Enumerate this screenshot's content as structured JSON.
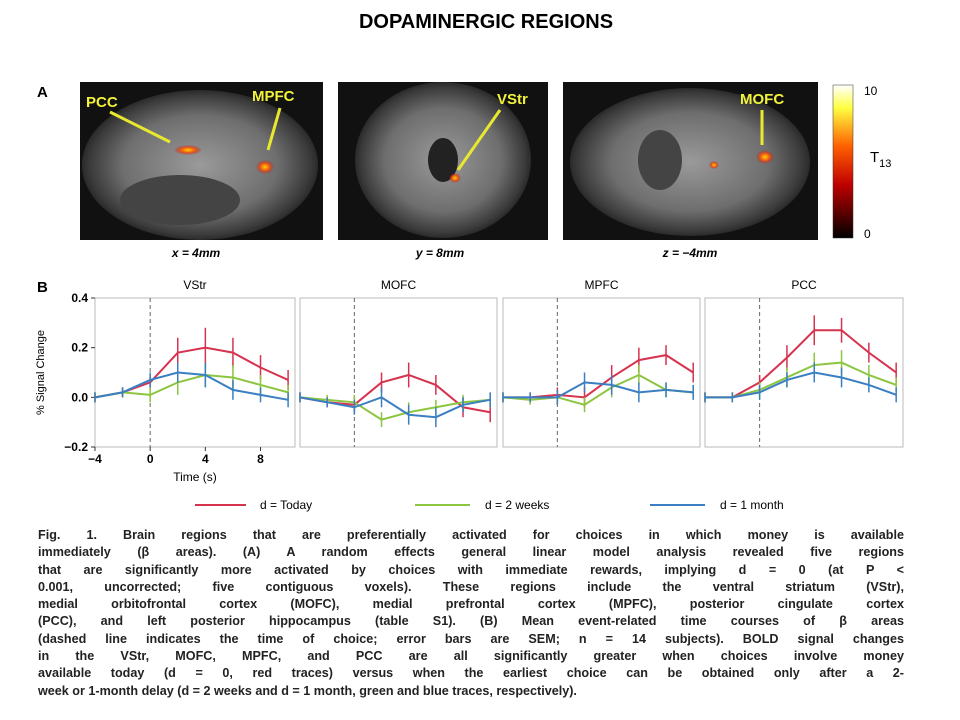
{
  "title": "DOPAMINERGIC REGIONS",
  "panel_a": {
    "label": "A",
    "images": [
      {
        "coord": "x = 4mm",
        "labels": [
          "PCC",
          "MPFC"
        ]
      },
      {
        "coord": "y = 8mm",
        "labels": [
          "VStr"
        ]
      },
      {
        "coord": "z = −4mm",
        "labels": [
          "MOFC"
        ]
      }
    ],
    "colorbar": {
      "max": 10,
      "min": 0,
      "label": "T",
      "label_sub": "13"
    }
  },
  "panel_b_label": "B",
  "chart_data": [
    {
      "type": "line",
      "title": "VStr",
      "x_label": "Time (s)",
      "y_label": "% Signal Change",
      "x": [
        -4,
        -2,
        0,
        2,
        4,
        6,
        8,
        10
      ],
      "xlim": [
        -4,
        10.5
      ],
      "ylim": [
        -0.2,
        0.4
      ],
      "xticks": [
        {
          "value": -4,
          "label": "−4"
        },
        0,
        4,
        8
      ],
      "yticks": [
        {
          "value": -0.2,
          "label": "−0.2"
        },
        {
          "value": 0,
          "label": "0.0"
        },
        0.2,
        0.4
      ],
      "choice_time": 0,
      "series": [
        {
          "name": "d = Today",
          "color": "#d6334f",
          "values": [
            0.0,
            0.02,
            0.06,
            0.18,
            0.2,
            0.18,
            0.12,
            0.07
          ],
          "errors": [
            0.02,
            0.02,
            0.03,
            0.06,
            0.08,
            0.06,
            0.05,
            0.04
          ]
        },
        {
          "name": "d = 2 weeks",
          "color": "#8cc540",
          "values": [
            0.0,
            0.02,
            0.01,
            0.06,
            0.09,
            0.08,
            0.05,
            0.02
          ],
          "errors": [
            0.02,
            0.02,
            0.03,
            0.05,
            0.05,
            0.05,
            0.04,
            0.03
          ]
        },
        {
          "name": "d = 1 month",
          "color": "#3a7fc2",
          "values": [
            0.0,
            0.02,
            0.07,
            0.1,
            0.09,
            0.03,
            0.01,
            -0.01
          ],
          "errors": [
            0.02,
            0.02,
            0.03,
            0.04,
            0.05,
            0.04,
            0.03,
            0.03
          ]
        }
      ]
    },
    {
      "type": "line",
      "title": "MOFC",
      "x": [
        -4,
        -2,
        0,
        2,
        4,
        6,
        8,
        10
      ],
      "xlim": [
        -4,
        10.5
      ],
      "ylim": [
        -0.2,
        0.4
      ],
      "choice_time": 0,
      "series": [
        {
          "color": "#d6334f",
          "values": [
            0.0,
            -0.02,
            -0.03,
            0.06,
            0.09,
            0.05,
            -0.04,
            -0.06
          ],
          "errors": [
            0.02,
            0.02,
            0.03,
            0.04,
            0.05,
            0.04,
            0.04,
            0.04
          ]
        },
        {
          "color": "#8cc540",
          "values": [
            0.0,
            -0.01,
            -0.02,
            -0.09,
            -0.06,
            -0.04,
            -0.02,
            -0.01
          ],
          "errors": [
            0.02,
            0.02,
            0.03,
            0.03,
            0.04,
            0.03,
            0.03,
            0.03
          ]
        },
        {
          "color": "#3a7fc2",
          "values": [
            0.0,
            -0.02,
            -0.04,
            0.0,
            -0.07,
            -0.08,
            -0.03,
            -0.01
          ],
          "errors": [
            0.02,
            0.02,
            0.03,
            0.04,
            0.04,
            0.04,
            0.03,
            0.03
          ]
        }
      ]
    },
    {
      "type": "line",
      "title": "MPFC",
      "x": [
        -4,
        -2,
        0,
        2,
        4,
        6,
        8,
        10
      ],
      "xlim": [
        -4,
        10.5
      ],
      "ylim": [
        -0.2,
        0.4
      ],
      "choice_time": 0,
      "series": [
        {
          "color": "#d6334f",
          "values": [
            0.0,
            0.0,
            0.01,
            0.0,
            0.08,
            0.15,
            0.17,
            0.1
          ],
          "errors": [
            0.02,
            0.02,
            0.03,
            0.04,
            0.05,
            0.05,
            0.04,
            0.04
          ]
        },
        {
          "color": "#8cc540",
          "values": [
            0.0,
            -0.01,
            0.0,
            -0.03,
            0.04,
            0.09,
            0.03,
            0.02
          ],
          "errors": [
            0.02,
            0.02,
            0.03,
            0.03,
            0.04,
            0.04,
            0.03,
            0.03
          ]
        },
        {
          "color": "#3a7fc2",
          "values": [
            0.0,
            0.0,
            0.0,
            0.06,
            0.05,
            0.02,
            0.03,
            0.02
          ],
          "errors": [
            0.02,
            0.02,
            0.03,
            0.04,
            0.04,
            0.04,
            0.03,
            0.03
          ]
        }
      ]
    },
    {
      "type": "line",
      "title": "PCC",
      "x": [
        -4,
        -2,
        0,
        2,
        4,
        6,
        8,
        10
      ],
      "xlim": [
        -4,
        10.5
      ],
      "ylim": [
        -0.2,
        0.4
      ],
      "choice_time": 0,
      "series": [
        {
          "color": "#d6334f",
          "values": [
            0.0,
            0.0,
            0.06,
            0.16,
            0.27,
            0.27,
            0.18,
            0.1
          ],
          "errors": [
            0.02,
            0.02,
            0.03,
            0.05,
            0.06,
            0.05,
            0.04,
            0.04
          ]
        },
        {
          "color": "#8cc540",
          "values": [
            0.0,
            0.0,
            0.03,
            0.08,
            0.13,
            0.14,
            0.09,
            0.05
          ],
          "errors": [
            0.02,
            0.02,
            0.03,
            0.04,
            0.05,
            0.05,
            0.04,
            0.03
          ]
        },
        {
          "color": "#3a7fc2",
          "values": [
            0.0,
            0.0,
            0.02,
            0.07,
            0.1,
            0.08,
            0.05,
            0.01
          ],
          "errors": [
            0.02,
            0.02,
            0.03,
            0.03,
            0.04,
            0.04,
            0.03,
            0.03
          ]
        }
      ]
    }
  ],
  "caption": [
    "Fig. 1. Brain regions that are preferentially activated for choices in which money is available",
    "immediately (β areas). (A) A random effects general linear model analysis revealed five regions",
    "that are significantly more activated by choices with immediate rewards, implying d = 0 (at P <",
    "0.001, uncorrected; five contiguous voxels). These regions include the ventral striatum (VStr),",
    "medial orbitofrontal cortex (MOFC), medial prefrontal cortex (MPFC), posterior cingulate cortex",
    "(PCC), and left posterior hippocampus (table S1). (B) Mean event-related time courses of β areas",
    "(dashed line indicates the time of choice; error bars are SEM; n = 14 subjects). BOLD signal changes",
    "in the VStr, MOFC, MPFC, and PCC are all significantly greater when choices involve money",
    "available today (d = 0, red traces) versus when the earliest choice can be obtained only after a 2-",
    "week or 1-month delay (d = 2 weeks and d = 1 month, green and blue traces, respectively)."
  ]
}
